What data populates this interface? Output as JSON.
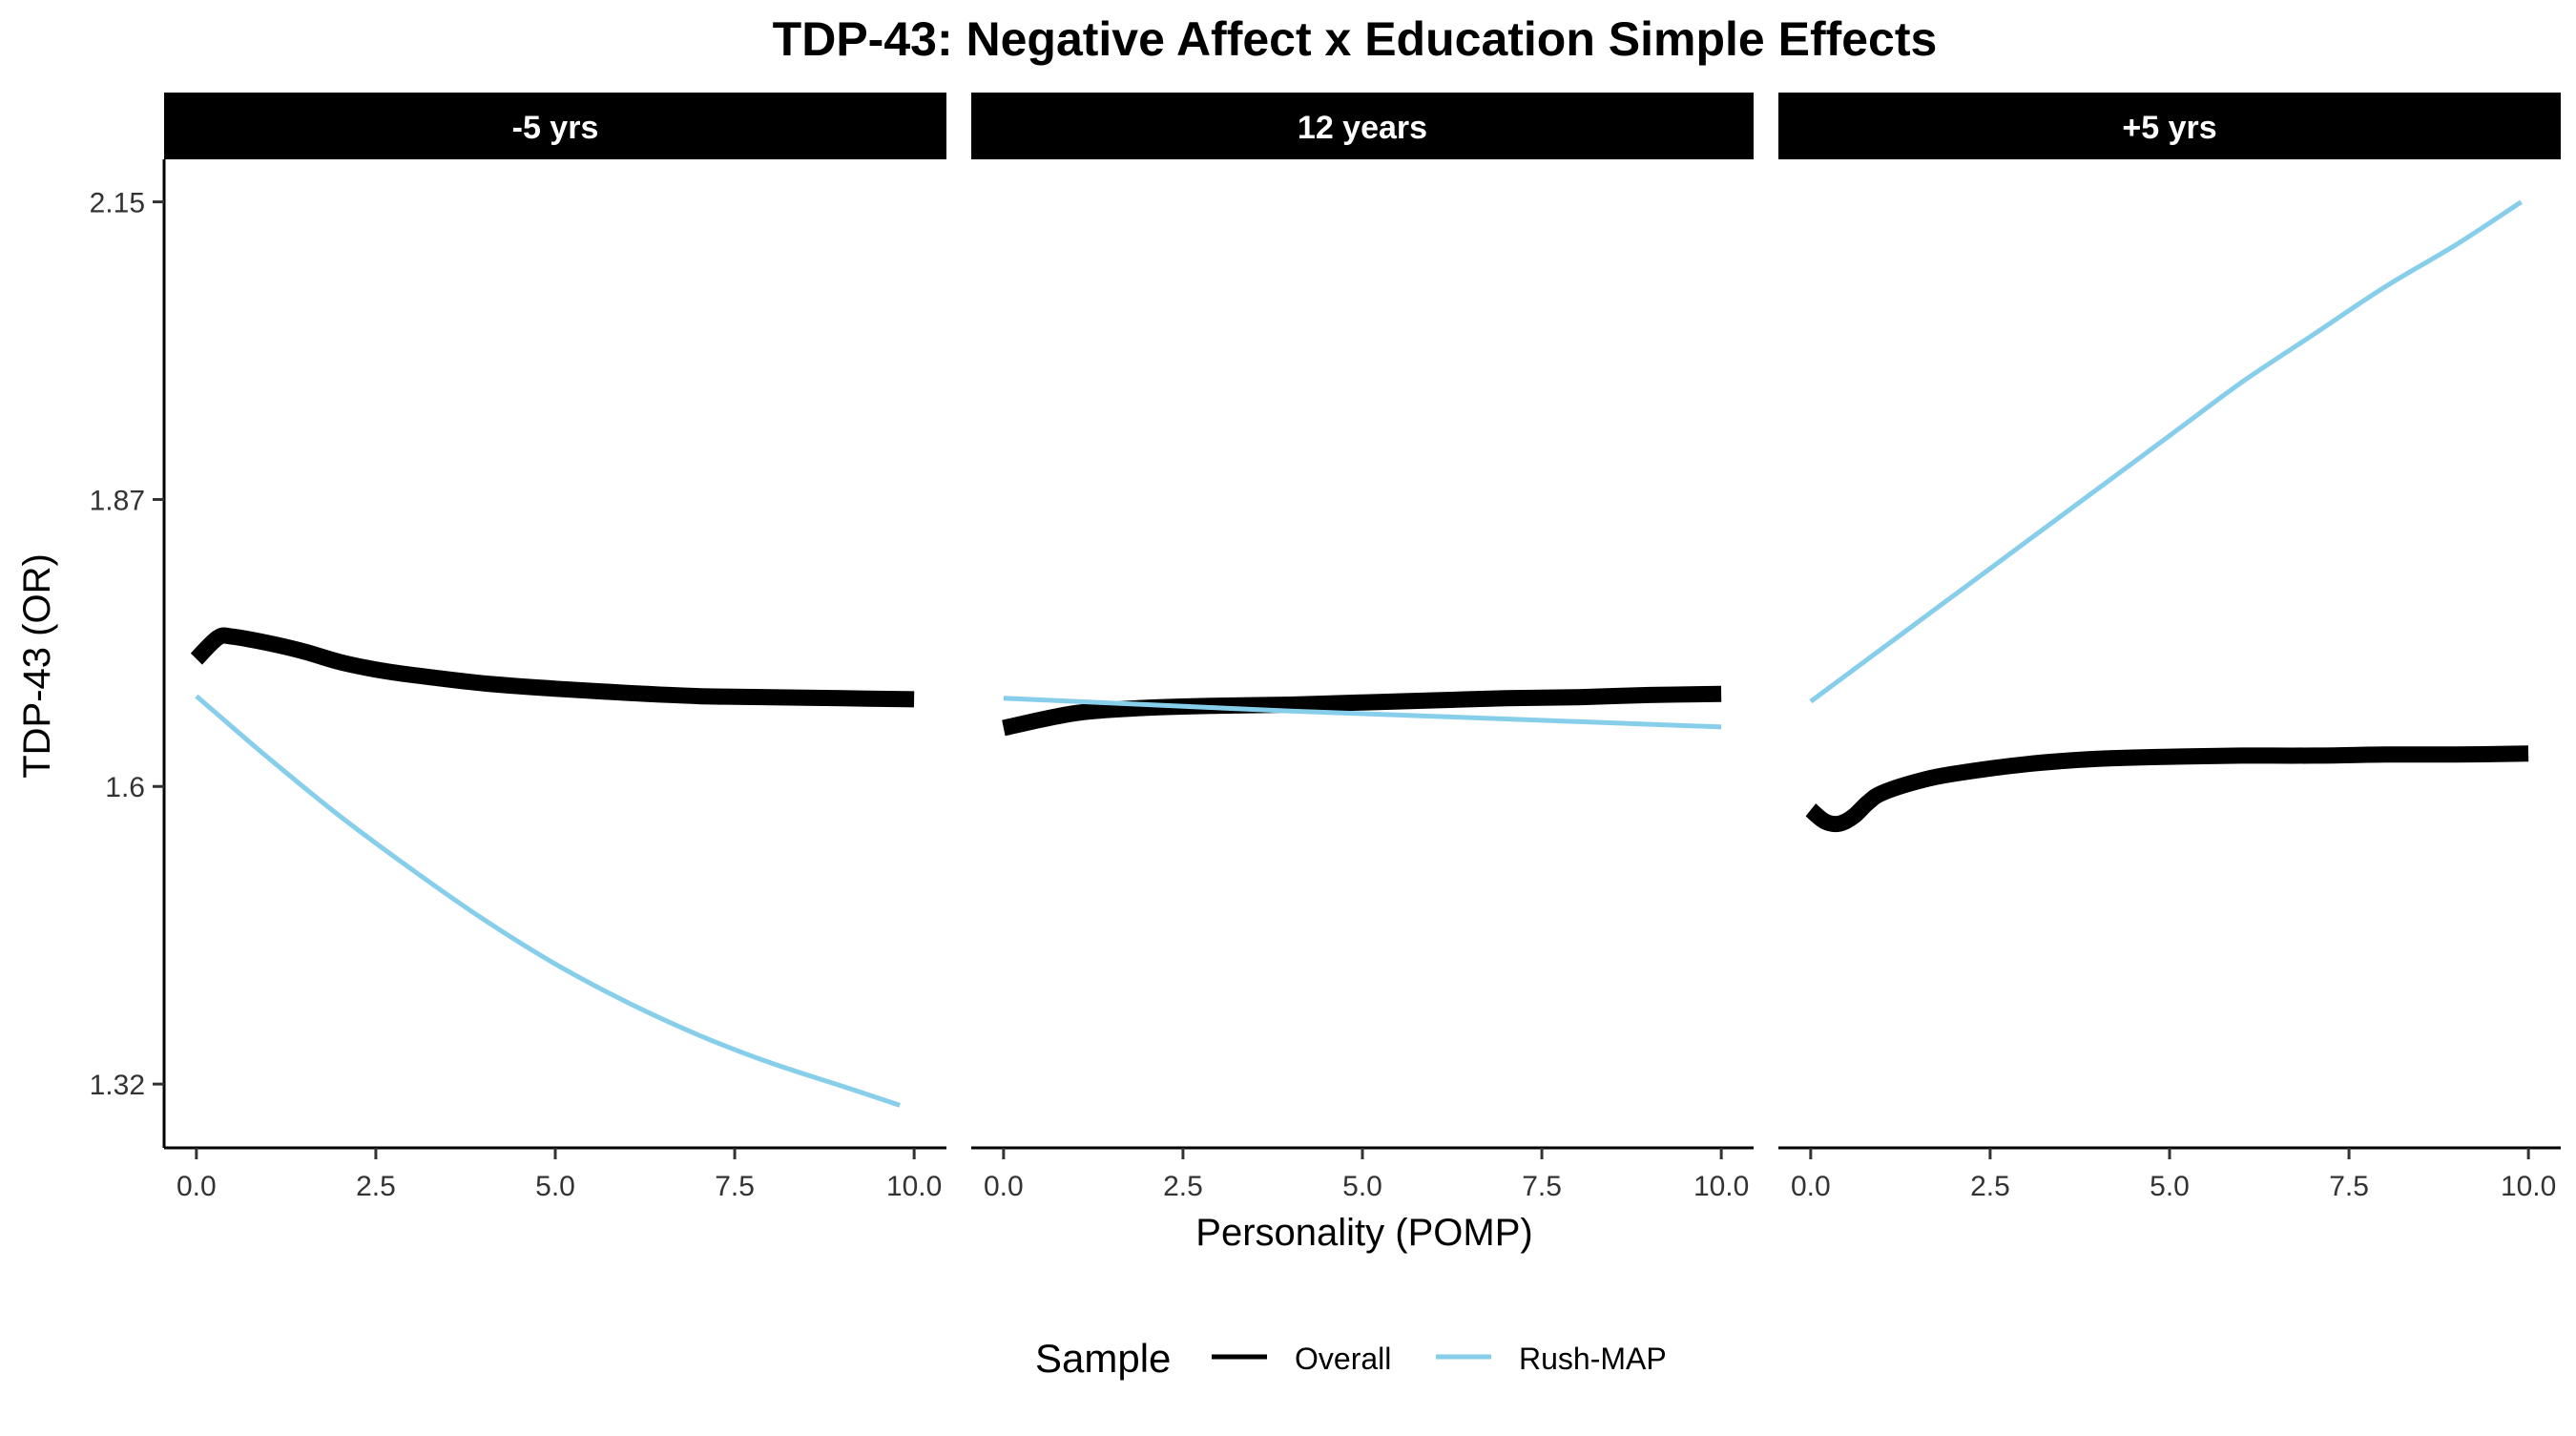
{
  "chart_data": {
    "type": "line",
    "title": "TDP-43: Negative Affect x Education Simple Effects",
    "xlabel": "Personality (POMP)",
    "ylabel": "TDP-43 (OR)",
    "ylim": [
      1.26,
      2.19
    ],
    "xlim": [
      -0.45,
      10.45
    ],
    "x_ticks": [
      "0.0",
      "2.5",
      "5.0",
      "7.5",
      "10.0"
    ],
    "y_ticks": [
      "1.32",
      "1.6",
      "1.87",
      "2.15"
    ],
    "grid": false,
    "legend": {
      "title": "Sample",
      "position": "bottom",
      "entries": [
        "Overall",
        "Rush-MAP"
      ]
    },
    "series_styles": {
      "Overall": {
        "color": "#000000",
        "width": "thick"
      },
      "Rush-MAP": {
        "color": "#87CEEB",
        "width": "thin"
      }
    },
    "panels": [
      {
        "label": "-5 yrs",
        "series": [
          {
            "name": "Overall",
            "x": [
              0,
              0.3,
              0.5,
              1,
              1.5,
              2,
              2.5,
              3,
              4,
              5,
              6,
              7,
              8,
              9,
              10
            ],
            "y": [
              1.72,
              1.74,
              1.741,
              1.735,
              1.727,
              1.717,
              1.71,
              1.705,
              1.697,
              1.692,
              1.688,
              1.685,
              1.684,
              1.683,
              1.682
            ]
          },
          {
            "name": "Rush-MAP",
            "x": [
              0,
              1,
              2,
              3,
              4,
              5,
              6,
              7,
              8,
              9,
              9.8
            ],
            "y": [
              1.685,
              1.627,
              1.572,
              1.522,
              1.475,
              1.433,
              1.397,
              1.366,
              1.34,
              1.318,
              1.3
            ]
          }
        ]
      },
      {
        "label": "12 years",
        "series": [
          {
            "name": "Overall",
            "x": [
              0,
              1,
              2,
              3,
              4,
              5,
              6,
              7,
              8,
              9,
              10
            ],
            "y": [
              1.655,
              1.669,
              1.674,
              1.676,
              1.677,
              1.679,
              1.681,
              1.683,
              1.684,
              1.686,
              1.687
            ]
          },
          {
            "name": "Rush-MAP",
            "x": [
              0,
              2,
              4,
              6,
              8,
              10
            ],
            "y": [
              1.683,
              1.677,
              1.671,
              1.666,
              1.661,
              1.656
            ]
          }
        ]
      },
      {
        "label": "+5 yrs",
        "series": [
          {
            "name": "Overall",
            "x": [
              0,
              0.2,
              0.4,
              0.6,
              0.8,
              1,
              1.5,
              2,
              3,
              4,
              5,
              6,
              7,
              8,
              9,
              10
            ],
            "y": [
              1.578,
              1.567,
              1.565,
              1.572,
              1.585,
              1.594,
              1.605,
              1.612,
              1.621,
              1.626,
              1.628,
              1.629,
              1.629,
              1.63,
              1.63,
              1.631
            ]
          },
          {
            "name": "Rush-MAP",
            "x": [
              0,
              1,
              2,
              3,
              4,
              5,
              6,
              7,
              8,
              9,
              9.9
            ],
            "y": [
              1.68,
              1.73,
              1.78,
              1.83,
              1.88,
              1.93,
              1.98,
              2.025,
              2.07,
              2.11,
              2.15
            ]
          }
        ]
      }
    ]
  }
}
